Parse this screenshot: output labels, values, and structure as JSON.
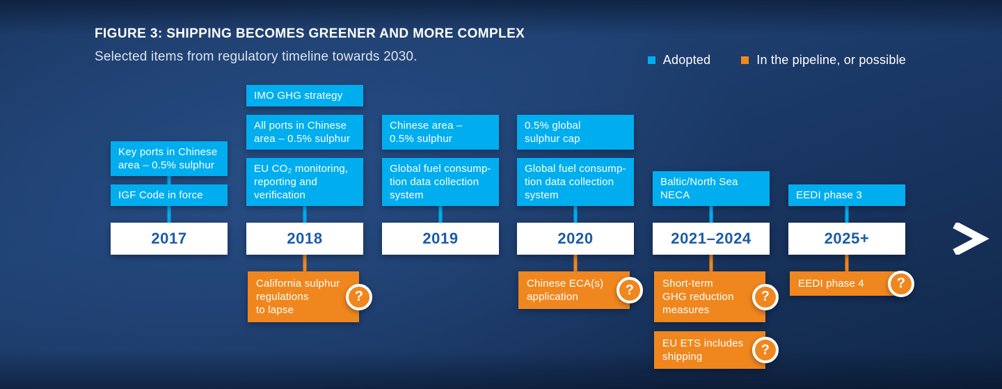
{
  "figure": {
    "title": "FIGURE 3: SHIPPING BECOMES GREENER AND MORE COMPLEX",
    "subtitle": "Selected items from regulatory timeline towards 2030."
  },
  "legend": [
    {
      "label": "Adopted",
      "color": "#00AEEF"
    },
    {
      "label": "In the pipeline, or possible",
      "color": "#F0871E"
    }
  ],
  "colors": {
    "adopted": "#00AEEF",
    "pipeline": "#F0871E",
    "year_text": "#1A5BA8",
    "background": "#1B3A66",
    "axis": "#FFFFFF"
  },
  "icons": {
    "question": "?"
  },
  "timeline": {
    "columns": [
      {
        "year": "2017",
        "adopted": [
          {
            "label": "Key ports in Chinese\narea – 0.5% sulphur"
          },
          {
            "label": "IGF Code in force"
          }
        ],
        "pipeline": []
      },
      {
        "year": "2018",
        "adopted": [
          {
            "label": "IMO GHG strategy"
          },
          {
            "label": "All ports in Chinese\narea – 0.5% sulphur"
          },
          {
            "label": "EU CO₂ monitoring,\nreporting and\nverification"
          }
        ],
        "pipeline": [
          {
            "label": "California sulphur\nregulations\nto lapse",
            "question": true
          }
        ]
      },
      {
        "year": "2019",
        "adopted": [
          {
            "label": "Chinese area –\n0.5% sulphur"
          },
          {
            "label": "Global fuel consump-\ntion data collection\nsystem"
          }
        ],
        "pipeline": []
      },
      {
        "year": "2020",
        "adopted": [
          {
            "label": "0.5% global\nsulphur cap"
          },
          {
            "label": "Global fuel consump-\ntion data collection\nsystem"
          }
        ],
        "pipeline": [
          {
            "label": "Chinese ECA(s)\napplication",
            "question": true
          }
        ]
      },
      {
        "year": "2021–2024",
        "adopted": [
          {
            "label": "Baltic/North Sea\nNECA"
          }
        ],
        "pipeline": [
          {
            "label": "Short-term\nGHG reduction\nmeasures",
            "question": true
          },
          {
            "label": "EU ETS includes\nshipping",
            "question": true
          }
        ]
      },
      {
        "year": "2025+",
        "adopted": [
          {
            "label": "EEDI phase 3"
          }
        ],
        "pipeline": [
          {
            "label": "EEDI phase 4",
            "question": true
          }
        ]
      }
    ]
  }
}
